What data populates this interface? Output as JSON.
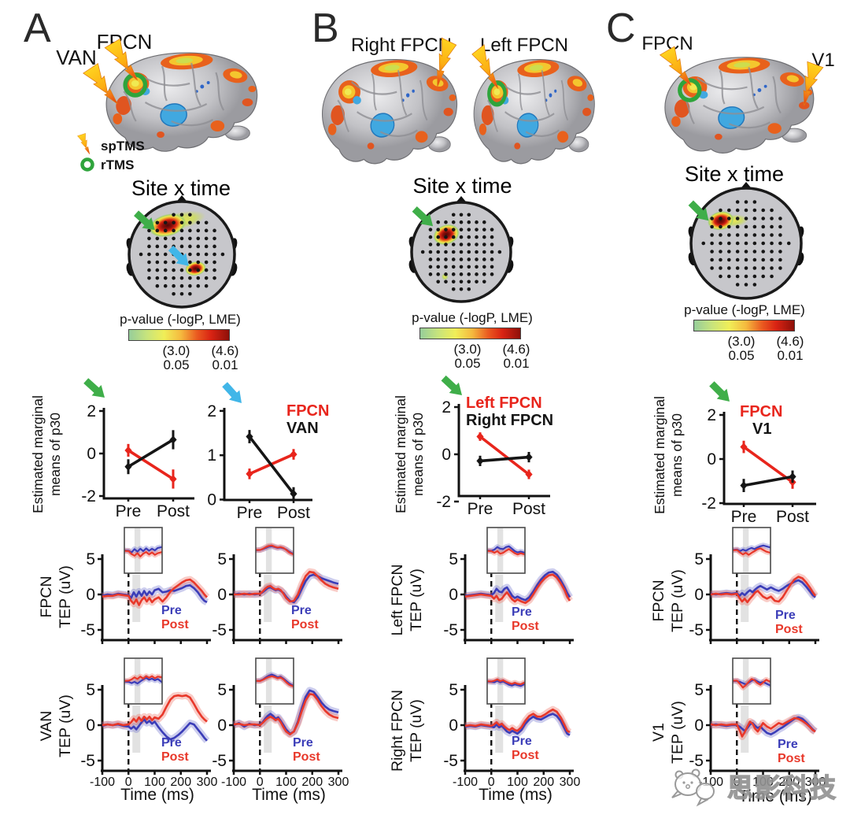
{
  "figure": {
    "watermark_text": "思影科技",
    "site_time_title": "Site x time",
    "colorbar_title": "p-value (-logP, LME)",
    "colorbar_logp": [
      "(3.0)",
      "(4.6)"
    ],
    "colorbar_p": [
      "0.05",
      "0.01"
    ],
    "marginal_ylabel_line1": "Estimated marginal",
    "marginal_ylabel_line2": "means of p30",
    "time_xlabel": "Time (ms)",
    "pre": "Pre",
    "post": "Post",
    "panelA": {
      "label": "A",
      "van": "VAN",
      "fpcn": "FPCN",
      "sptms": "spTMS",
      "rtms": "rTMS"
    },
    "panelB": {
      "label": "B",
      "right_fpcn": "Right FPCN",
      "left_fpcn": "Left FPCN"
    },
    "panelC": {
      "label": "C",
      "fpcn": "FPCN",
      "v1": "V1"
    }
  },
  "colors": {
    "red": "#e8251c",
    "black": "#151515",
    "pre": "#3b3db8",
    "post": "#e8382a",
    "green": "#3fae49",
    "cyan": "#41b6e8",
    "colorbar": [
      "#96cd9a",
      "#c8e47c",
      "#f0ee58",
      "#f5b93e",
      "#ea5a20",
      "#d92313",
      "#8e1009"
    ]
  },
  "chart_data": {
    "tep_time": [
      -100,
      -80,
      -60,
      -40,
      -20,
      0,
      10,
      20,
      30,
      40,
      50,
      60,
      70,
      80,
      90,
      100,
      115,
      130,
      145,
      160,
      175,
      190,
      205,
      220,
      235,
      250,
      265,
      280,
      290,
      300
    ],
    "tep_xtick_values": [
      -100,
      0,
      100,
      200,
      300
    ],
    "tep_xtick_labels": [
      "-100",
      "0",
      "100",
      "200",
      "300"
    ],
    "tep_ytick_values": [
      5,
      0,
      -5
    ],
    "tep_ytick_labels": [
      "5",
      "0",
      "-5"
    ],
    "marginal": [
      {
        "id": "A1",
        "arrow": "green",
        "yticks": [
          2,
          0,
          -2
        ],
        "xticks": [
          "Pre",
          "Post"
        ],
        "legend": null,
        "series": [
          {
            "name": "FPCN",
            "color": "red",
            "values": [
              0.15,
              -1.2
            ],
            "errors": [
              0.3,
              0.45
            ]
          },
          {
            "name": "VAN",
            "color": "black",
            "values": [
              -0.62,
              0.65
            ],
            "errors": [
              0.35,
              0.45
            ]
          }
        ]
      },
      {
        "id": "A2",
        "arrow": "cyan",
        "yticks": [
          2,
          1,
          0
        ],
        "xticks": [
          "Pre",
          "Post"
        ],
        "legend": [
          "FPCN",
          "VAN"
        ],
        "series": [
          {
            "name": "FPCN",
            "color": "red",
            "values": [
              0.58,
              1.02
            ],
            "errors": [
              0.12,
              0.12
            ]
          },
          {
            "name": "VAN",
            "color": "black",
            "values": [
              1.42,
              0.13
            ],
            "errors": [
              0.15,
              0.15
            ]
          }
        ]
      },
      {
        "id": "B",
        "arrow": "green",
        "yticks": [
          2,
          0,
          -2
        ],
        "xticks": [
          "Pre",
          "Post"
        ],
        "legend": [
          "Left FPCN",
          "Right FPCN"
        ],
        "series": [
          {
            "name": "Left FPCN",
            "color": "red",
            "values": [
              0.75,
              -0.85
            ],
            "errors": [
              0.18,
              0.2
            ]
          },
          {
            "name": "Right FPCN",
            "color": "black",
            "values": [
              -0.28,
              -0.12
            ],
            "errors": [
              0.22,
              0.22
            ]
          }
        ]
      },
      {
        "id": "C",
        "arrow": "green",
        "yticks": [
          2,
          0,
          -2
        ],
        "xticks": [
          "Pre",
          "Post"
        ],
        "legend": [
          "FPCN",
          "V1"
        ],
        "series": [
          {
            "name": "FPCN",
            "color": "red",
            "values": [
              0.55,
              -1.05
            ],
            "errors": [
              0.28,
              0.3
            ]
          },
          {
            "name": "V1",
            "color": "black",
            "values": [
              -1.2,
              -0.8
            ],
            "errors": [
              0.3,
              0.28
            ]
          }
        ]
      }
    ],
    "tep": [
      {
        "id": "A-FPCN-L",
        "ylabel": [
          "FPCN",
          "TEP (uV)"
        ],
        "pre": [
          -0.2,
          0.0,
          -0.1,
          0.1,
          0.0,
          -0.1,
          -0.5,
          0.3,
          -0.3,
          0.4,
          -0.2,
          0.5,
          -0.1,
          0.4,
          0.0,
          0.6,
          0.8,
          0.3,
          0.4,
          0.6,
          0.5,
          0.7,
          0.9,
          1.2,
          1.3,
          0.9,
          0.3,
          -0.5,
          -0.9,
          -1.1
        ],
        "post": [
          -0.3,
          -0.2,
          -0.2,
          0.0,
          -0.1,
          -0.2,
          -0.9,
          -1.3,
          -0.7,
          -1.5,
          -0.8,
          -0.4,
          -1.0,
          -0.5,
          -1.1,
          -0.7,
          -0.4,
          -1.0,
          -0.4,
          0.4,
          0.9,
          1.3,
          1.7,
          2.0,
          2.1,
          1.7,
          1.1,
          0.5,
          0.0,
          -0.4
        ]
      },
      {
        "id": "A-FPCN-R",
        "ylabel": [
          "FPCN",
          "TEP (uV)"
        ],
        "pre": [
          0.0,
          0.1,
          0.0,
          0.1,
          0.0,
          0.1,
          0.3,
          0.6,
          0.9,
          1.0,
          0.8,
          0.6,
          0.7,
          0.5,
          0.2,
          -0.3,
          -0.9,
          -1.1,
          -0.4,
          0.8,
          1.9,
          2.6,
          2.8,
          2.6,
          2.3,
          2.1,
          1.9,
          1.7,
          1.6,
          1.5
        ],
        "post": [
          0.0,
          0.0,
          0.1,
          0.0,
          0.1,
          0.1,
          0.4,
          0.8,
          1.1,
          1.2,
          0.9,
          0.7,
          0.8,
          0.6,
          0.1,
          -0.5,
          -1.0,
          -0.9,
          0.0,
          1.4,
          2.6,
          3.2,
          3.1,
          2.6,
          2.0,
          1.5,
          1.2,
          1.0,
          0.9,
          0.8
        ]
      },
      {
        "id": "A-VAN-L",
        "ylabel": [
          "VAN",
          "TEP (uV)"
        ],
        "pre": [
          -0.1,
          0.1,
          0.0,
          0.1,
          -0.1,
          -0.2,
          -0.5,
          -0.2,
          -0.6,
          -0.1,
          0.4,
          0.8,
          0.3,
          0.6,
          0.2,
          0.5,
          -0.3,
          -1.0,
          -1.6,
          -2.0,
          -1.8,
          -1.4,
          -0.9,
          -0.3,
          0.3,
          0.1,
          -0.6,
          -1.3,
          -1.8,
          -2.2
        ],
        "post": [
          0.0,
          0.1,
          0.0,
          0.2,
          0.0,
          0.1,
          0.4,
          0.9,
          0.5,
          1.1,
          0.6,
          1.2,
          0.8,
          1.2,
          0.7,
          1.1,
          0.9,
          1.5,
          2.6,
          3.6,
          4.1,
          4.2,
          4.1,
          4.2,
          3.9,
          3.0,
          2.0,
          1.2,
          0.8,
          0.5
        ]
      },
      {
        "id": "A-VAN-R",
        "ylabel": [
          "VAN",
          "TEP (uV)"
        ],
        "pre": [
          0.0,
          0.3,
          -0.2,
          0.2,
          0.0,
          0.1,
          0.4,
          0.9,
          1.3,
          1.6,
          1.3,
          0.9,
          1.1,
          0.6,
          0.0,
          -0.6,
          -1.2,
          -0.9,
          0.5,
          2.4,
          4.0,
          4.9,
          4.7,
          4.0,
          3.2,
          2.6,
          2.2,
          2.0,
          1.9,
          1.8
        ],
        "post": [
          0.1,
          0.2,
          0.0,
          0.1,
          0.1,
          0.0,
          0.3,
          0.7,
          1.0,
          1.2,
          1.0,
          0.7,
          0.9,
          0.4,
          -0.3,
          -0.9,
          -1.3,
          -0.9,
          0.3,
          2.0,
          3.5,
          4.4,
          4.3,
          3.6,
          2.7,
          2.0,
          1.5,
          1.2,
          1.1,
          1.0
        ]
      },
      {
        "id": "B-LeftFPCN",
        "ylabel": [
          "Left FPCN",
          "TEP (uV)"
        ],
        "pre": [
          -0.2,
          -0.1,
          0.0,
          0.1,
          0.0,
          -0.1,
          0.2,
          0.8,
          0.4,
          0.3,
          0.8,
          1.0,
          0.4,
          -0.2,
          -0.5,
          -0.3,
          -0.6,
          -0.8,
          -0.4,
          0.4,
          1.3,
          2.1,
          2.7,
          3.1,
          3.2,
          2.8,
          2.0,
          1.0,
          0.2,
          -0.4
        ],
        "post": [
          -0.3,
          -0.2,
          -0.1,
          0.0,
          -0.1,
          -0.2,
          -0.6,
          -0.2,
          -0.8,
          -0.6,
          -0.1,
          0.3,
          -0.2,
          -0.7,
          -1.0,
          -0.7,
          -1.0,
          -1.2,
          -0.8,
          0.0,
          0.9,
          1.7,
          2.3,
          2.7,
          2.8,
          2.4,
          1.6,
          0.6,
          -0.3,
          -0.9
        ]
      },
      {
        "id": "B-RightFPCN",
        "ylabel": [
          "Right FPCN",
          "TEP (uV)"
        ],
        "pre": [
          -0.2,
          -0.1,
          -0.2,
          0.0,
          -0.1,
          -0.2,
          -0.3,
          0.1,
          -0.3,
          -0.1,
          -0.5,
          -0.9,
          -1.1,
          -0.8,
          -1.0,
          -1.2,
          -0.7,
          0.2,
          0.8,
          1.2,
          0.9,
          0.8,
          1.1,
          1.4,
          1.6,
          1.3,
          0.6,
          -0.5,
          -1.2,
          -1.4
        ],
        "post": [
          -0.1,
          0.0,
          -0.1,
          0.1,
          0.0,
          -0.1,
          0.1,
          0.4,
          0.0,
          0.2,
          -0.2,
          -0.5,
          -0.7,
          -0.4,
          -0.7,
          -0.8,
          -0.3,
          0.6,
          1.3,
          1.6,
          1.2,
          1.2,
          1.5,
          1.9,
          2.2,
          1.9,
          1.1,
          0.0,
          -0.8,
          -1.0
        ]
      },
      {
        "id": "C-FPCN",
        "ylabel": [
          "FPCN",
          "TEP (uV)"
        ],
        "pre": [
          0.1,
          0.0,
          0.1,
          0.2,
          0.1,
          0.2,
          -0.2,
          0.2,
          -0.1,
          0.3,
          0.6,
          0.3,
          0.7,
          1.0,
          1.2,
          1.0,
          0.7,
          1.0,
          0.7,
          0.5,
          0.8,
          1.2,
          1.5,
          1.8,
          2.0,
          1.7,
          1.1,
          0.4,
          -0.1,
          -0.4
        ],
        "post": [
          0.0,
          0.1,
          0.0,
          0.1,
          0.0,
          0.1,
          -0.5,
          -1.0,
          -0.6,
          -1.1,
          -0.6,
          -0.2,
          0.3,
          0.5,
          0.1,
          -0.3,
          -0.6,
          -0.3,
          -0.9,
          -1.0,
          -0.4,
          0.5,
          1.4,
          2.1,
          2.5,
          2.3,
          1.7,
          0.9,
          0.3,
          -0.2
        ]
      },
      {
        "id": "C-V1",
        "ylabel": [
          "V1",
          "TEP (uV)"
        ],
        "pre": [
          0.0,
          0.1,
          0.0,
          -0.1,
          0.0,
          0.0,
          -0.2,
          -0.5,
          -0.8,
          -0.4,
          0.1,
          0.3,
          -0.1,
          -0.4,
          -0.2,
          -0.6,
          -1.1,
          -1.3,
          -1.0,
          -0.6,
          -0.3,
          0.1,
          0.5,
          0.9,
          1.1,
          0.9,
          0.4,
          -0.2,
          -0.6,
          -0.9
        ],
        "post": [
          0.1,
          0.0,
          0.1,
          0.0,
          0.1,
          0.1,
          -0.7,
          -1.6,
          -1.0,
          -0.2,
          0.5,
          0.2,
          -0.5,
          -0.9,
          -0.3,
          0.3,
          -0.2,
          -0.5,
          -0.1,
          0.3,
          0.1,
          0.4,
          0.7,
          1.0,
          0.9,
          0.6,
          0.2,
          -0.3,
          -0.7,
          -0.9
        ]
      }
    ],
    "topo": [
      {
        "panel": "A",
        "blobs": [
          {
            "x": -0.27,
            "y": -0.55,
            "rx": 0.36,
            "ry": 0.21,
            "rot": -15,
            "tail": {
              "x": -0.02,
              "y": -0.64,
              "rx": 0.48,
              "ry": 0.16,
              "rot": -12
            }
          },
          {
            "x": 0.26,
            "y": 0.27,
            "rx": 0.2,
            "ry": 0.135,
            "rot": -10
          }
        ],
        "minor": [],
        "arrows": [
          {
            "color": "green",
            "x": -0.51,
            "y": -0.46,
            "ang": 42
          },
          {
            "color": "cyan",
            "x": 0.13,
            "y": 0.22,
            "ang": 45
          }
        ]
      },
      {
        "panel": "B",
        "blobs": [
          {
            "x": -0.3,
            "y": -0.35,
            "rx": 0.27,
            "ry": 0.2,
            "rot": -20
          }
        ],
        "minor": [
          {
            "x": -0.33,
            "y": 0.5,
            "r": 0.07
          }
        ],
        "arrows": [
          {
            "color": "green",
            "x": -0.57,
            "y": -0.52,
            "ang": 43
          }
        ]
      },
      {
        "panel": "C",
        "blobs": [
          {
            "x": -0.46,
            "y": -0.41,
            "rx": 0.24,
            "ry": 0.17,
            "rot": -12,
            "tail": {
              "x": -0.22,
              "y": -0.41,
              "rx": 0.26,
              "ry": 0.11,
              "rot": -5
            }
          }
        ],
        "minor": [],
        "arrows": [
          {
            "color": "green",
            "x": -0.68,
            "y": -0.41,
            "ang": 45
          }
        ]
      }
    ]
  }
}
